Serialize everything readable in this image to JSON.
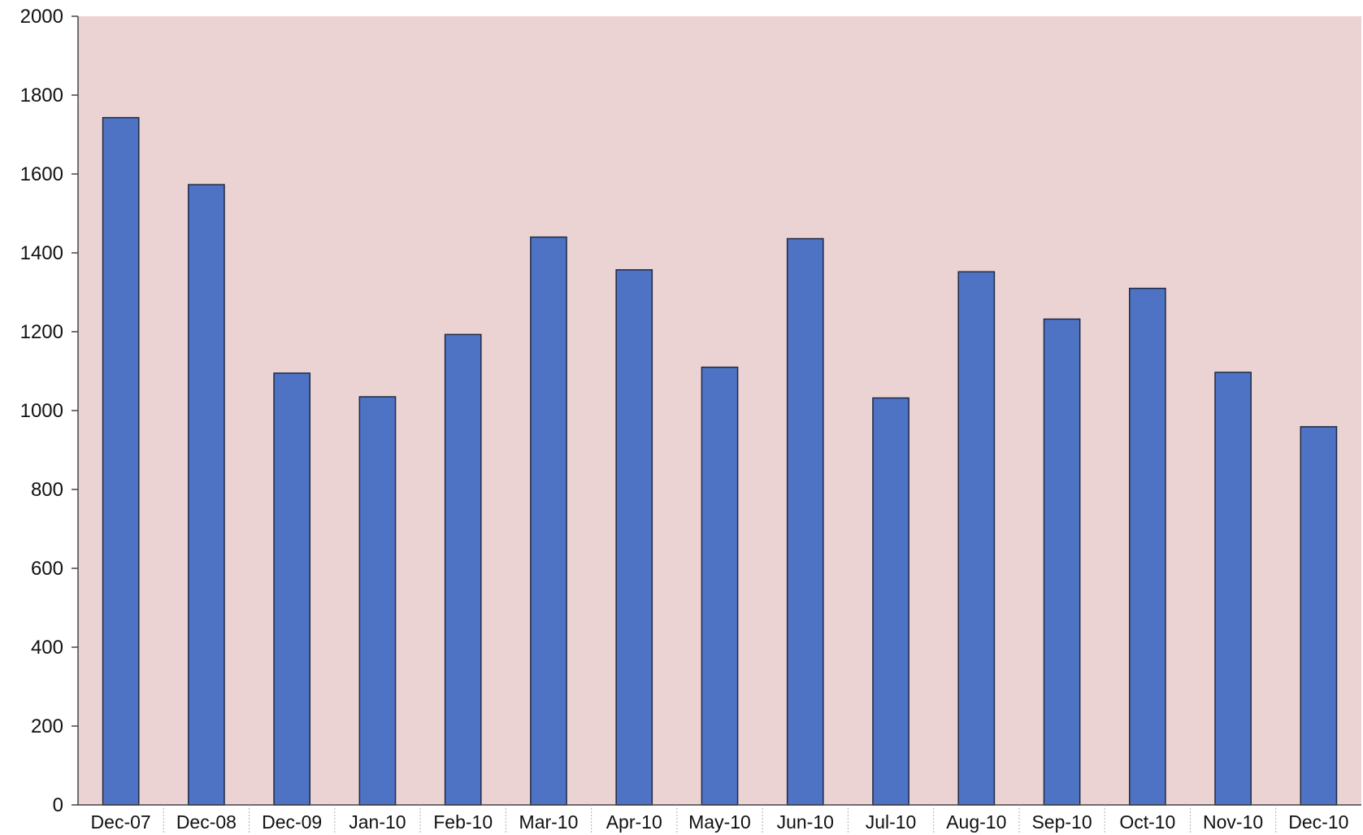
{
  "colors": {
    "plot_background": "#ecd3d3",
    "bar_fill": "#4f73c4",
    "bar_stroke": "#1f2a44",
    "axis": "#444444"
  },
  "chart_data": {
    "type": "bar",
    "title": "",
    "xlabel": "",
    "ylabel": "",
    "categories": [
      "Dec-07",
      "Dec-08",
      "Dec-09",
      "Jan-10",
      "Feb-10",
      "Mar-10",
      "Apr-10",
      "May-10",
      "Jun-10",
      "Jul-10",
      "Aug-10",
      "Sep-10",
      "Oct-10",
      "Nov-10",
      "Dec-10"
    ],
    "values": [
      1743,
      1573,
      1095,
      1035,
      1193,
      1440,
      1357,
      1110,
      1436,
      1032,
      1352,
      1232,
      1310,
      1097,
      959
    ],
    "ylim": [
      0,
      2000
    ],
    "yticks": [
      0,
      200,
      400,
      600,
      800,
      1000,
      1200,
      1400,
      1600,
      1800,
      2000
    ],
    "grid": false,
    "legend": "none"
  }
}
